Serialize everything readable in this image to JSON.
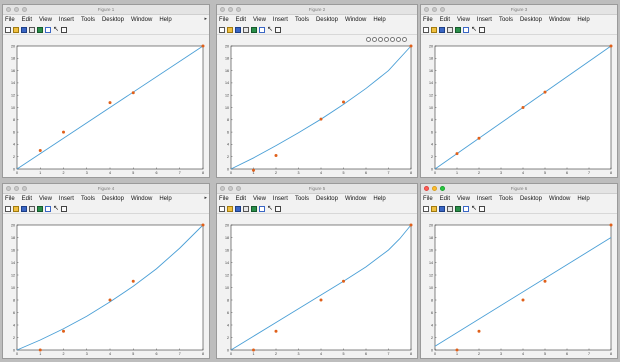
{
  "windows": [
    {
      "title": "Figure 1",
      "active": false
    },
    {
      "title": "Figure 2",
      "active": false,
      "axes_toolbar": true
    },
    {
      "title": "Figure 3",
      "active": false
    },
    {
      "title": "Figure 4",
      "active": false
    },
    {
      "title": "Figure 5",
      "active": false
    },
    {
      "title": "Figure 6",
      "active": true
    }
  ],
  "menu": [
    "File",
    "Edit",
    "View",
    "Insert",
    "Tools",
    "Desktop",
    "Window",
    "Help"
  ],
  "toolbar_icons": [
    "new-figure-icon",
    "open-folder-icon",
    "save-icon",
    "print-icon",
    "insert-label-icon",
    "figure-icon",
    "pointer-icon",
    "pan-icon"
  ],
  "axes_toolbar_icons": [
    "brush-icon",
    "datatip-icon",
    "rotate-icon",
    "pan-hand-icon",
    "zoom-in-icon",
    "zoom-out-icon",
    "restore-view-icon"
  ],
  "colors": {
    "line": "#4a9fd6",
    "points": "#e0601a"
  },
  "chart_data": [
    {
      "type": "line",
      "xlim": [
        0,
        8
      ],
      "ylim": [
        0,
        20
      ],
      "xticks": [
        "0",
        "1",
        "2",
        "3",
        "4",
        "5",
        "6",
        "7",
        "8"
      ],
      "yticks": [
        "0",
        "2",
        "4",
        "6",
        "8",
        "10",
        "12",
        "14",
        "16",
        "18",
        "20"
      ],
      "line": {
        "x": [
          0,
          8
        ],
        "y": [
          0,
          20
        ]
      },
      "points": {
        "x": [
          1,
          2,
          4,
          5,
          8
        ],
        "y": [
          3,
          6,
          10.8,
          12.4,
          20
        ]
      }
    },
    {
      "type": "line",
      "xlim": [
        0,
        8
      ],
      "ylim": [
        0,
        20
      ],
      "xticks": [
        "0",
        "1",
        "2",
        "3",
        "4",
        "5",
        "6",
        "7",
        "8"
      ],
      "yticks": [
        "0",
        "2",
        "4",
        "6",
        "8",
        "10",
        "12",
        "14",
        "16",
        "18",
        "20"
      ],
      "line": {
        "x": [
          0,
          1,
          2,
          3,
          4,
          5,
          6,
          7,
          8
        ],
        "y": [
          0,
          1.8,
          3.8,
          5.9,
          8.1,
          10.5,
          13.1,
          16,
          20
        ]
      },
      "points": {
        "x": [
          1,
          2,
          4,
          5,
          8
        ],
        "y": [
          -0.2,
          2.2,
          8.1,
          10.9,
          20
        ]
      }
    },
    {
      "type": "line",
      "xlim": [
        0,
        8
      ],
      "ylim": [
        0,
        20
      ],
      "xticks": [
        "0",
        "1",
        "2",
        "3",
        "4",
        "5",
        "6",
        "7",
        "8"
      ],
      "yticks": [
        "0",
        "2",
        "4",
        "6",
        "8",
        "10",
        "12",
        "14",
        "16",
        "18",
        "20"
      ],
      "line": {
        "x": [
          0,
          8
        ],
        "y": [
          0,
          20
        ]
      },
      "points": {
        "x": [
          1,
          2,
          4,
          5,
          8
        ],
        "y": [
          2.5,
          5,
          10,
          12.5,
          20
        ]
      }
    },
    {
      "type": "line",
      "xlim": [
        0,
        8
      ],
      "ylim": [
        0,
        20
      ],
      "xticks": [
        "0",
        "1",
        "2",
        "3",
        "4",
        "5",
        "6",
        "7",
        "8"
      ],
      "yticks": [
        "0",
        "2",
        "4",
        "6",
        "8",
        "10",
        "12",
        "14",
        "16",
        "18",
        "20"
      ],
      "line": {
        "x": [
          0,
          1,
          2,
          3,
          4,
          5,
          6,
          7,
          8
        ],
        "y": [
          0,
          1.6,
          3.4,
          5.4,
          7.7,
          10.2,
          13,
          16.3,
          20
        ]
      },
      "points": {
        "x": [
          1,
          2,
          4,
          5,
          8
        ],
        "y": [
          0,
          3,
          8,
          11,
          20
        ]
      }
    },
    {
      "type": "line",
      "xlim": [
        0,
        8
      ],
      "ylim": [
        0,
        20
      ],
      "xticks": [
        "0",
        "1",
        "2",
        "3",
        "4",
        "5",
        "6",
        "7",
        "8"
      ],
      "yticks": [
        "0",
        "2",
        "4",
        "6",
        "8",
        "10",
        "12",
        "14",
        "16",
        "18",
        "20"
      ],
      "line": {
        "x": [
          0,
          1,
          2,
          3,
          4,
          5,
          6,
          7,
          7.5,
          8
        ],
        "y": [
          0,
          2.2,
          4.4,
          6.6,
          8.8,
          11,
          13.3,
          16,
          17.8,
          20
        ]
      },
      "points": {
        "x": [
          1,
          2,
          4,
          5,
          8
        ],
        "y": [
          0,
          3,
          8,
          11,
          20
        ]
      }
    },
    {
      "type": "line",
      "xlim": [
        0,
        8
      ],
      "ylim": [
        0,
        20
      ],
      "xticks": [
        "0",
        "1",
        "2",
        "3",
        "4",
        "5",
        "6",
        "7",
        "8"
      ],
      "yticks": [
        "0",
        "2",
        "4",
        "6",
        "8",
        "10",
        "12",
        "14",
        "16",
        "18",
        "20"
      ],
      "line": {
        "x": [
          0,
          8
        ],
        "y": [
          0.6,
          18
        ]
      },
      "points": {
        "x": [
          1,
          2,
          4,
          5,
          8
        ],
        "y": [
          0,
          3,
          8,
          11,
          20
        ]
      }
    }
  ]
}
